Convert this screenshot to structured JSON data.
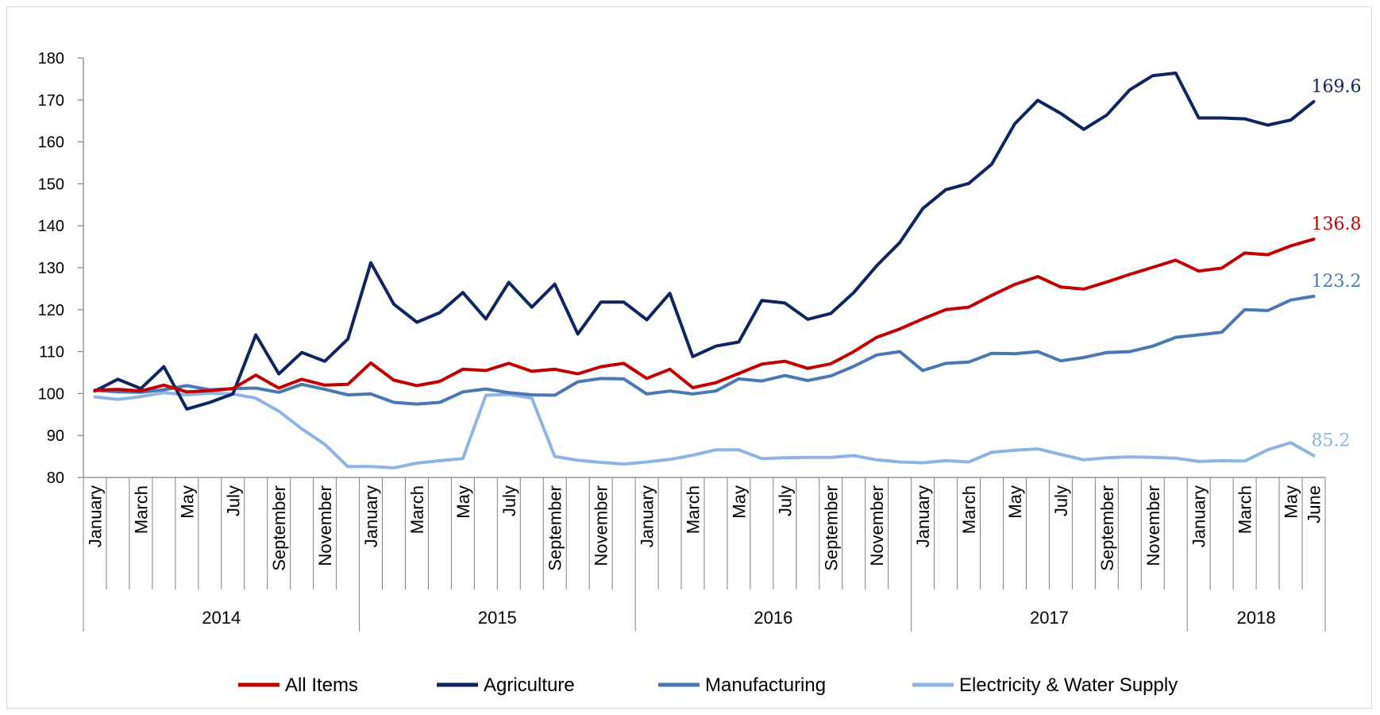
{
  "chart_data": {
    "type": "line",
    "title": "",
    "xlabel": "",
    "ylabel": "",
    "ylim": [
      80,
      180
    ],
    "yticks": [
      80,
      90,
      100,
      110,
      120,
      130,
      140,
      150,
      160,
      170,
      180
    ],
    "grid": false,
    "legend_position": "bottom",
    "month_tick_labels": [
      "January",
      "March",
      "May",
      "July",
      "September",
      "November"
    ],
    "last_month_label": "June",
    "years": [
      "2014",
      "2015",
      "2016",
      "2017",
      "2018"
    ],
    "x": [
      "Jan 2014",
      "Feb 2014",
      "Mar 2014",
      "Apr 2014",
      "May 2014",
      "Jun 2014",
      "Jul 2014",
      "Aug 2014",
      "Sep 2014",
      "Oct 2014",
      "Nov 2014",
      "Dec 2014",
      "Jan 2015",
      "Feb 2015",
      "Mar 2015",
      "Apr 2015",
      "May 2015",
      "Jun 2015",
      "Jul 2015",
      "Aug 2015",
      "Sep 2015",
      "Oct 2015",
      "Nov 2015",
      "Dec 2015",
      "Jan 2016",
      "Feb 2016",
      "Mar 2016",
      "Apr 2016",
      "May 2016",
      "Jun 2016",
      "Jul 2016",
      "Aug 2016",
      "Sep 2016",
      "Oct 2016",
      "Nov 2016",
      "Dec 2016",
      "Jan 2017",
      "Feb 2017",
      "Mar 2017",
      "Apr 2017",
      "May 2017",
      "Jun 2017",
      "Jul 2017",
      "Aug 2017",
      "Sep 2017",
      "Oct 2017",
      "Nov 2017",
      "Dec 2017",
      "Jan 2018",
      "Feb 2018",
      "Mar 2018",
      "Apr 2018",
      "May 2018",
      "Jun 2018"
    ],
    "series": [
      {
        "name": "All Items",
        "color": "#C00000",
        "end_label": "136.8",
        "values": [
          100.8,
          101.0,
          100.6,
          102.0,
          100.4,
          100.7,
          101.2,
          104.4,
          101.3,
          103.4,
          102.0,
          102.2,
          107.3,
          103.2,
          101.9,
          102.9,
          105.8,
          105.5,
          107.2,
          105.3,
          105.8,
          104.7,
          106.4,
          107.2,
          103.6,
          105.8,
          101.4,
          102.6,
          104.8,
          107.0,
          107.7,
          106.0,
          107.1,
          110.0,
          113.4,
          115.4,
          117.8,
          120.0,
          120.6,
          123.4,
          126.0,
          127.9,
          125.4,
          124.9,
          126.6,
          128.4,
          130.1,
          131.8,
          129.2,
          129.9,
          133.5,
          133.1,
          135.2,
          136.8
        ]
      },
      {
        "name": "Agriculture",
        "color": "#0F2461",
        "end_label": "169.6",
        "values": [
          100.6,
          103.4,
          101.2,
          106.4,
          96.3,
          97.9,
          99.9,
          114.0,
          104.7,
          109.8,
          107.7,
          113.0,
          131.2,
          121.3,
          117.0,
          119.3,
          124.1,
          117.8,
          126.5,
          120.6,
          126.1,
          114.2,
          121.8,
          121.8,
          117.6,
          123.9,
          108.8,
          111.3,
          112.3,
          122.2,
          121.6,
          117.7,
          119.1,
          124.1,
          130.5,
          136.0,
          144.1,
          148.6,
          150.1,
          154.7,
          164.3,
          169.9,
          166.8,
          163.0,
          166.4,
          172.4,
          175.8,
          176.4,
          165.7,
          165.7,
          165.5,
          164.0,
          165.2,
          169.6
        ]
      },
      {
        "name": "Manufacturing",
        "color": "#4A78B2",
        "end_label": "123.2",
        "values": [
          100.8,
          100.4,
          100.3,
          100.9,
          101.9,
          100.9,
          101.2,
          101.3,
          100.3,
          102.2,
          101.0,
          99.7,
          99.9,
          97.9,
          97.5,
          97.9,
          100.4,
          101.1,
          100.2,
          99.7,
          99.6,
          102.8,
          103.6,
          103.5,
          99.9,
          100.6,
          99.9,
          100.6,
          103.5,
          103.0,
          104.3,
          103.1,
          104.2,
          106.5,
          109.2,
          110.0,
          105.5,
          107.2,
          107.5,
          109.6,
          109.5,
          110.0,
          107.8,
          108.6,
          109.8,
          110.0,
          111.3,
          113.4,
          114.0,
          114.6,
          120.0,
          119.8,
          122.3,
          123.2
        ]
      },
      {
        "name": "Electricity & Water Supply",
        "color": "#8DB4E2",
        "end_label": "85.2",
        "values": [
          99.2,
          98.6,
          99.3,
          100.2,
          99.7,
          100.1,
          99.9,
          98.9,
          95.8,
          91.6,
          87.9,
          82.6,
          82.6,
          82.3,
          83.4,
          84.0,
          84.5,
          99.6,
          99.8,
          98.9,
          85.0,
          84.1,
          83.6,
          83.2,
          83.7,
          84.3,
          85.3,
          86.6,
          86.6,
          84.5,
          84.7,
          84.8,
          84.8,
          85.2,
          84.2,
          83.7,
          83.5,
          84.0,
          83.7,
          86.0,
          86.5,
          86.8,
          85.5,
          84.2,
          84.7,
          84.9,
          84.8,
          84.6,
          83.8,
          84.0,
          83.9,
          86.6,
          88.3,
          85.2
        ]
      }
    ]
  }
}
